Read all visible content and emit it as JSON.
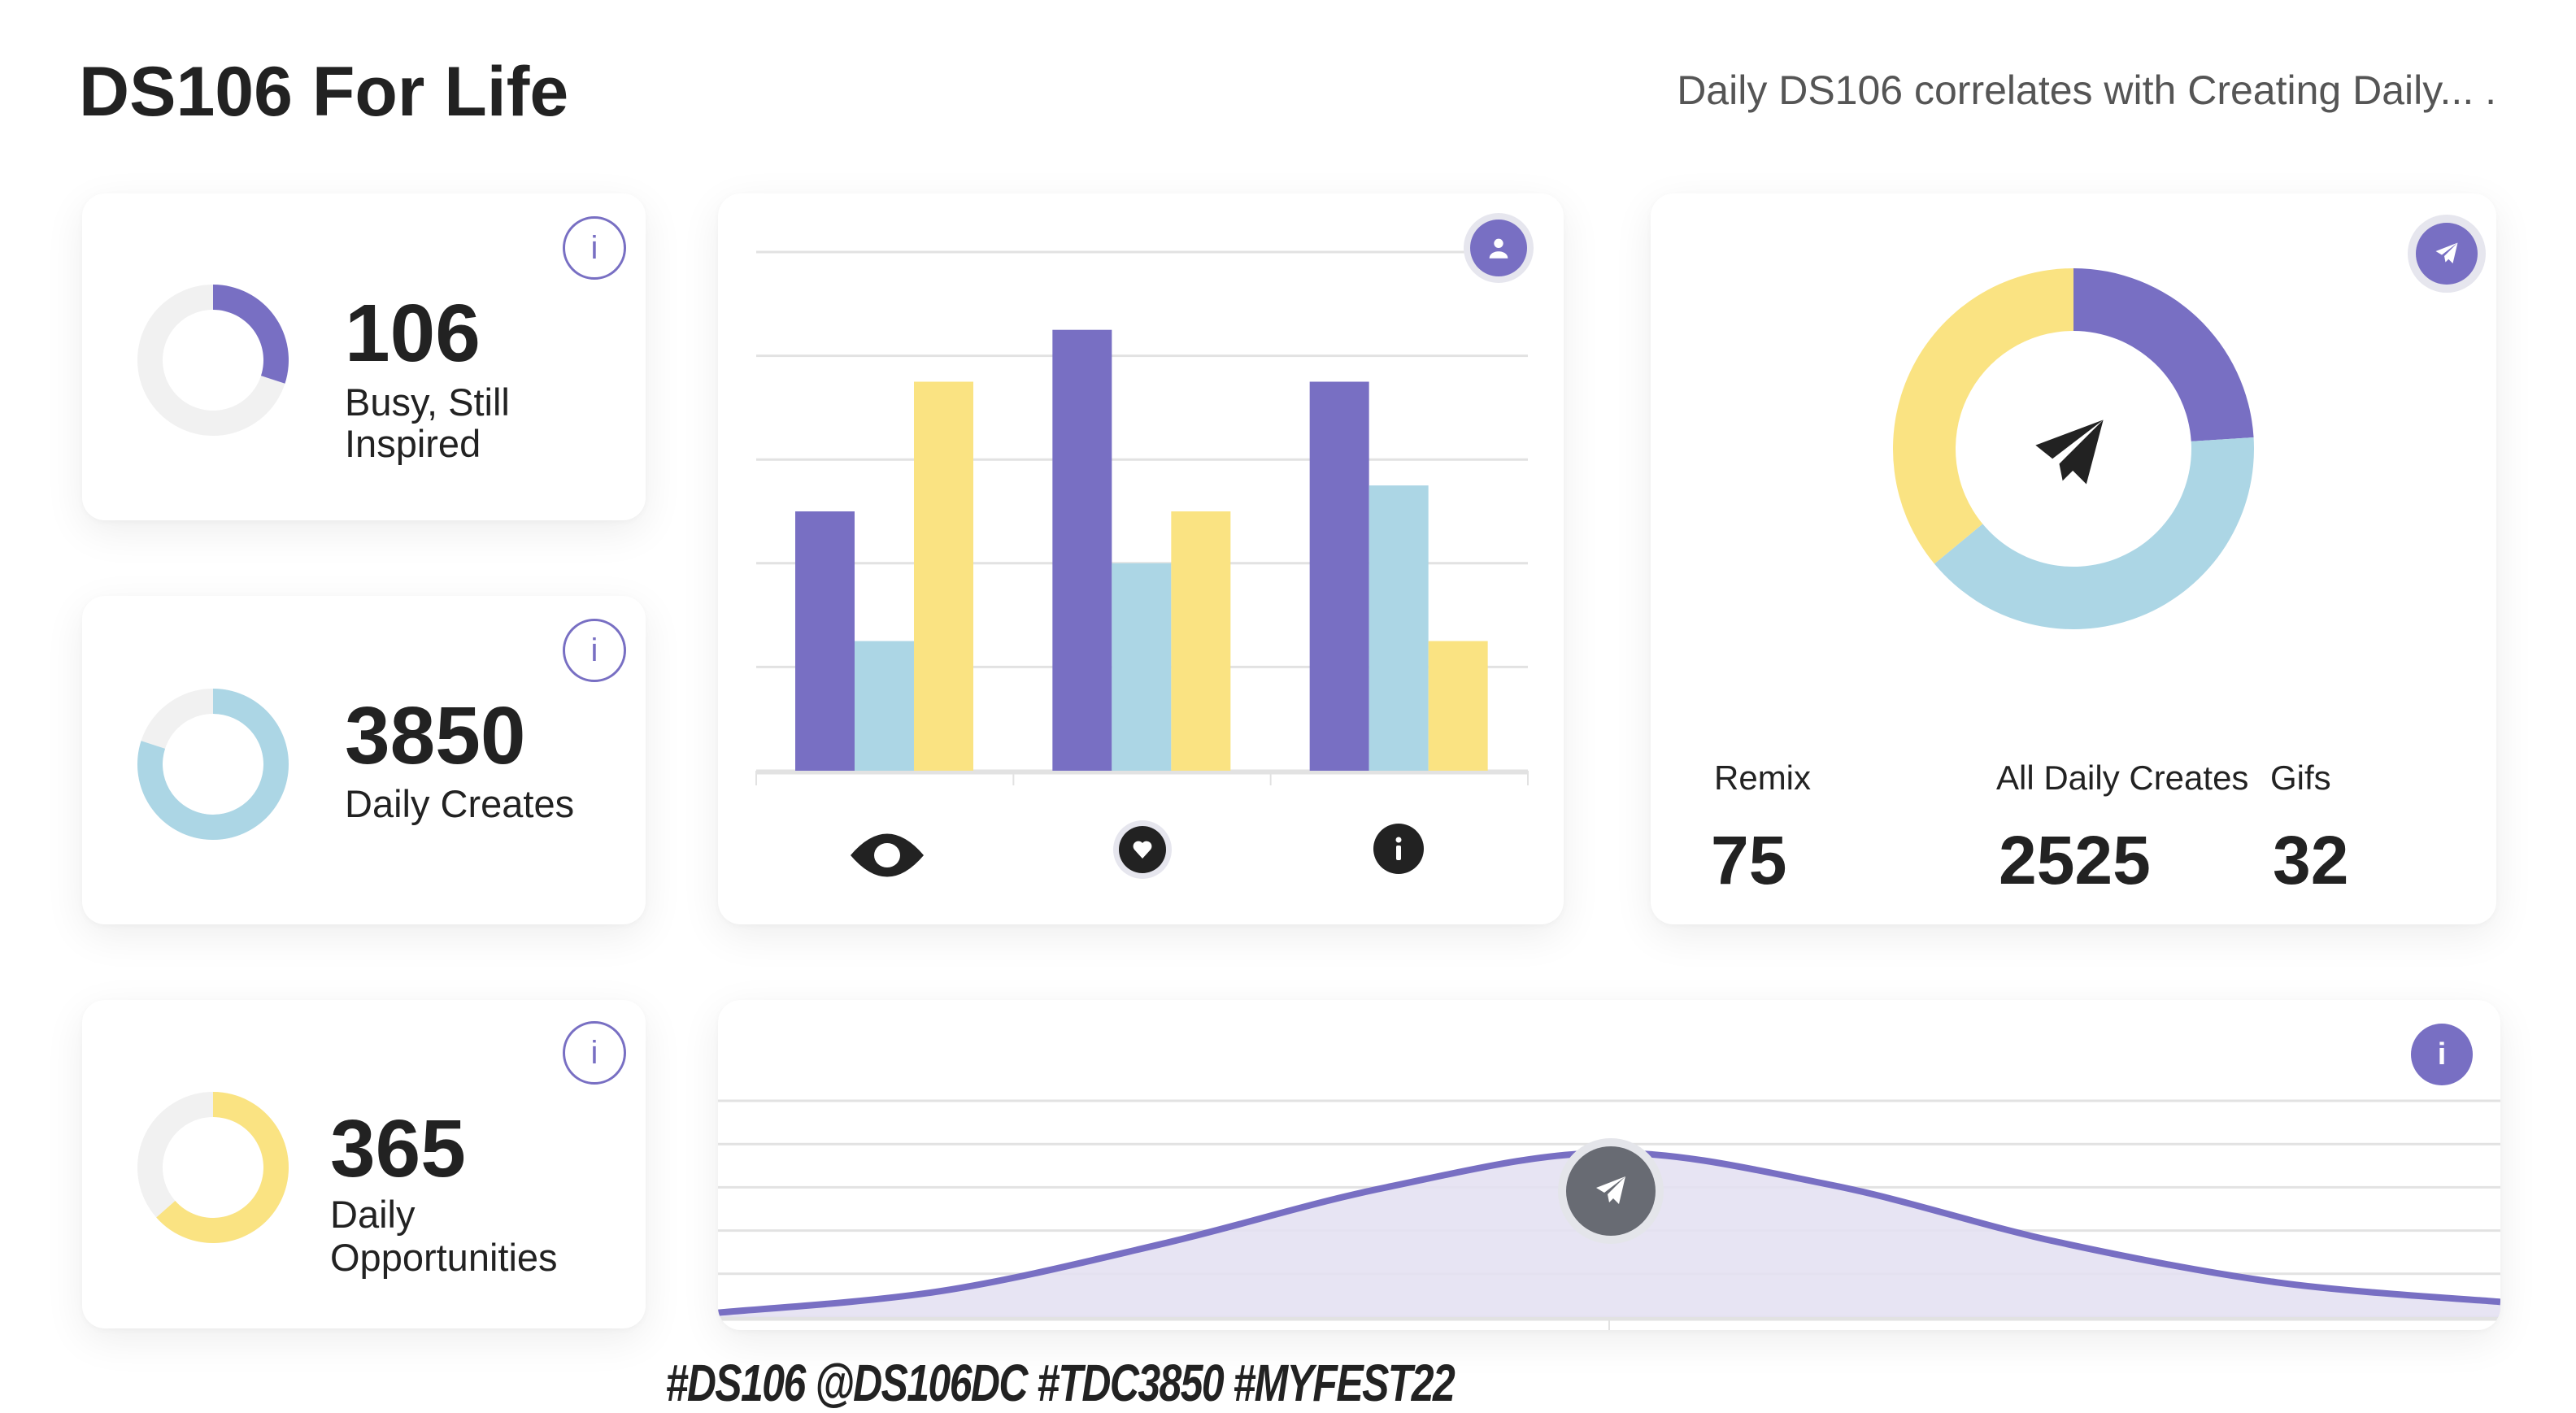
{
  "header": {
    "title": "DS106 For Life",
    "subtitle": "Daily DS106 correlates with Creating Daily... ."
  },
  "stat_cards": [
    {
      "value": "106",
      "label_lines": [
        "Busy, Still",
        "Inspired"
      ],
      "progress": 0.3,
      "color": "#786fc3",
      "icon": "info-icon"
    },
    {
      "value": "3850",
      "label_lines": [
        "Daily Creates"
      ],
      "progress": 0.8,
      "color": "#acd6e5",
      "icon": "info-icon"
    },
    {
      "value": "365",
      "label_lines": [
        "Daily",
        "Opportunities"
      ],
      "progress": 0.635,
      "color": "#fae382",
      "icon": "info-icon"
    }
  ],
  "colors": {
    "purple": "#786fc3",
    "blue": "#acd6e5",
    "yellow": "#fae382",
    "track": "#f1f1f1",
    "grid": "#e2e2e2"
  },
  "summary": {
    "icon": "paper-plane-icon",
    "stats": [
      {
        "label": "Remix",
        "value": "75"
      },
      {
        "label": "All Daily Creates",
        "value": "2525"
      },
      {
        "label": "Gifs",
        "value": "32"
      }
    ]
  },
  "hashtags": "#DS106 @DS106DC #TDC3850 #MYFEST22",
  "chart_data": [
    {
      "type": "bar",
      "categories": [
        "eye-icon",
        "heart-icon",
        "info-icon"
      ],
      "series": [
        {
          "name": "purple",
          "color": "#786fc3",
          "values": [
            2.5,
            4.25,
            3.75
          ]
        },
        {
          "name": "blue",
          "color": "#acd6e5",
          "values": [
            1.25,
            2.0,
            2.75
          ]
        },
        {
          "name": "yellow",
          "color": "#fae382",
          "values": [
            3.75,
            2.5,
            1.25
          ]
        }
      ],
      "ylim": [
        0,
        5
      ],
      "grid": true,
      "corner_icon": "user-icon"
    },
    {
      "type": "pie",
      "labels": [
        "purple",
        "blue",
        "yellow"
      ],
      "values": [
        24,
        40,
        36
      ],
      "colors": [
        "#786fc3",
        "#acd6e5",
        "#fae382"
      ],
      "donut": true
    },
    {
      "type": "area",
      "x": [
        0,
        1,
        2,
        3,
        4,
        5,
        6,
        7,
        8
      ],
      "values": [
        0.1,
        0.6,
        1.7,
        3.0,
        3.8,
        3.05,
        1.75,
        0.8,
        0.35
      ],
      "ylim": [
        0,
        5
      ],
      "grid": true,
      "color": "#786fc3",
      "fill": "#e4e1f2",
      "highlight_index": 4,
      "highlight_icon": "paper-plane-icon",
      "corner_icon": "info-icon"
    }
  ]
}
